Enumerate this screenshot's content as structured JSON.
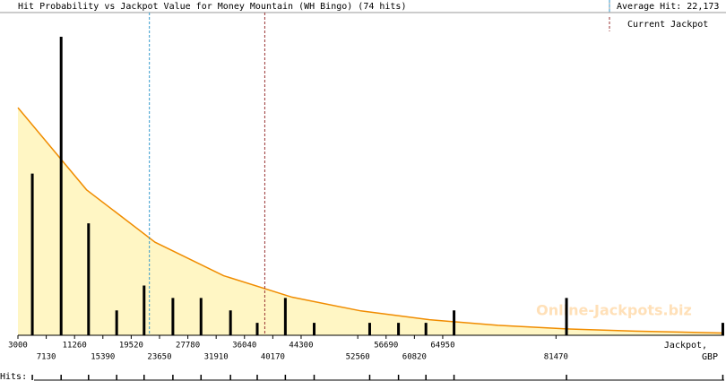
{
  "chart_data": {
    "type": "bar",
    "title": "Hit Probability vs Jackpot Value for Money Mountain (WH Bingo) (74 hits)",
    "x": [
      5100,
      9300,
      13300,
      17400,
      21400,
      25600,
      29700,
      34000,
      37900,
      42000,
      46200,
      54300,
      58500,
      62500,
      66600,
      83000,
      105800
    ],
    "values": [
      13,
      24,
      9,
      2,
      4,
      3,
      3,
      2,
      1,
      3,
      1,
      1,
      1,
      1,
      2,
      3,
      1
    ],
    "color": "#000000",
    "curve": {
      "color": "#f08c00",
      "fill": "#fff6c4",
      "x": [
        3000,
        13000,
        23000,
        33000,
        43000,
        53000,
        63000,
        73000,
        83000,
        93000,
        106000
      ],
      "values": [
        18.3,
        11.7,
        7.48,
        4.79,
        3.06,
        1.96,
        1.25,
        0.8,
        0.51,
        0.33,
        0.18
      ]
    },
    "average_hit_label": "Average Hit:",
    "average_hit": {
      "value": 22173,
      "label": "22,173"
    },
    "average_color": "#3399cc",
    "current_jackpot_label": "Current Jackpot",
    "current_jackpot": 39000,
    "current_color": "#993333",
    "xlim": [
      3000,
      106000
    ],
    "ylim": [
      0,
      24
    ],
    "xticks": [
      3000,
      7130,
      11260,
      15390,
      19520,
      23650,
      27780,
      31910,
      36040,
      40170,
      44300,
      52560,
      56690,
      60820,
      64950,
      81470
    ],
    "xlabel": "Jackpot,",
    "xunit": "GBP",
    "rug_label": "Hits:",
    "watermark": "Online-Jackpots.biz"
  }
}
